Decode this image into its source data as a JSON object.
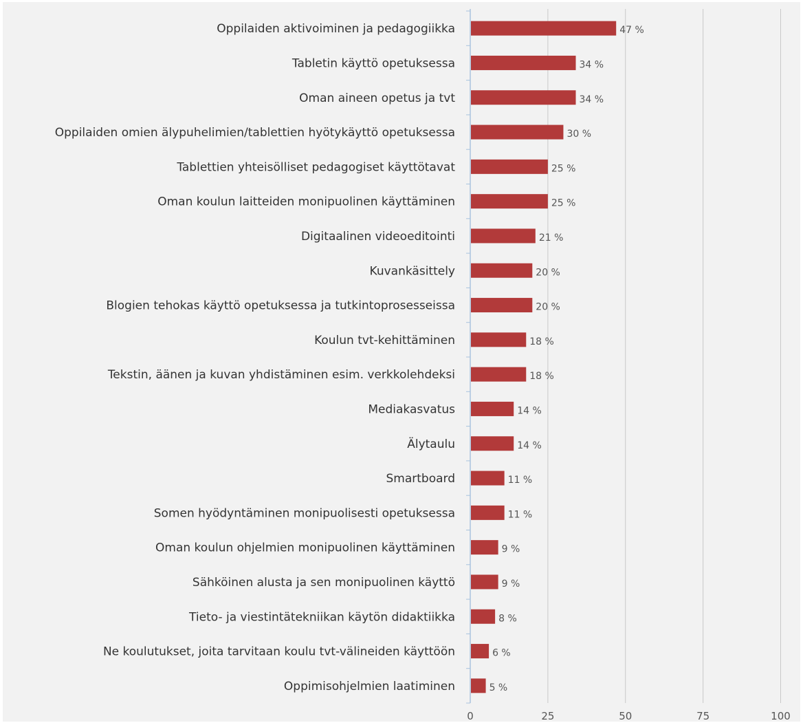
{
  "chart_data": {
    "type": "bar",
    "orientation": "horizontal",
    "categories": [
      "Oppilaiden aktivoiminen ja pedagogiikka",
      "Tabletin käyttö opetuksessa",
      "Oman aineen opetus ja tvt",
      "Oppilaiden omien älypuhelimien/tablettien hyötykäyttö opetuksessa",
      "Tablettien yhteisölliset pedagogiset käyttötavat",
      "Oman koulun laitteiden monipuolinen käyttäminen",
      "Digitaalinen videoeditointi",
      "Kuvankäsittely",
      "Blogien tehokas käyttö opetuksessa ja tutkintoprosesseissa",
      "Koulun tvt-kehittäminen",
      "Tekstin, äänen ja kuvan yhdistäminen esim. verkkolehdeksi",
      "Mediakasvatus",
      "Älytaulu",
      "Smartboard",
      "Somen hyödyntäminen monipuolisesti opetuksessa",
      "Oman koulun ohjelmien monipuolinen käyttäminen",
      "Sähköinen alusta ja sen monipuolinen käyttö",
      "Tieto- ja viestintätekniikan käytön didaktiikka",
      "Ne koulutukset, joita tarvitaan koulu tvt-välineiden käyttöön",
      "Oppimisohjelmien laatiminen"
    ],
    "values": [
      47,
      34,
      34,
      30,
      25,
      25,
      21,
      20,
      20,
      18,
      18,
      14,
      14,
      11,
      11,
      9,
      9,
      8,
      6,
      5
    ],
    "value_labels": [
      "47 %",
      "34 %",
      "34 %",
      "30 %",
      "25 %",
      "25 %",
      "21 %",
      "20 %",
      "20 %",
      "18 %",
      "18 %",
      "14 %",
      "14 %",
      "11 %",
      "11 %",
      "9 %",
      "9 %",
      "8 %",
      "6 %",
      "5 %"
    ],
    "x_ticks": [
      "0",
      "25",
      "50",
      "75",
      "100"
    ],
    "xlim": [
      0,
      100
    ],
    "grid": true,
    "legend": "none",
    "bar_color": "#b23a3a",
    "grid_color": "#c8c8c8",
    "axis_color": "#a9c3de"
  }
}
